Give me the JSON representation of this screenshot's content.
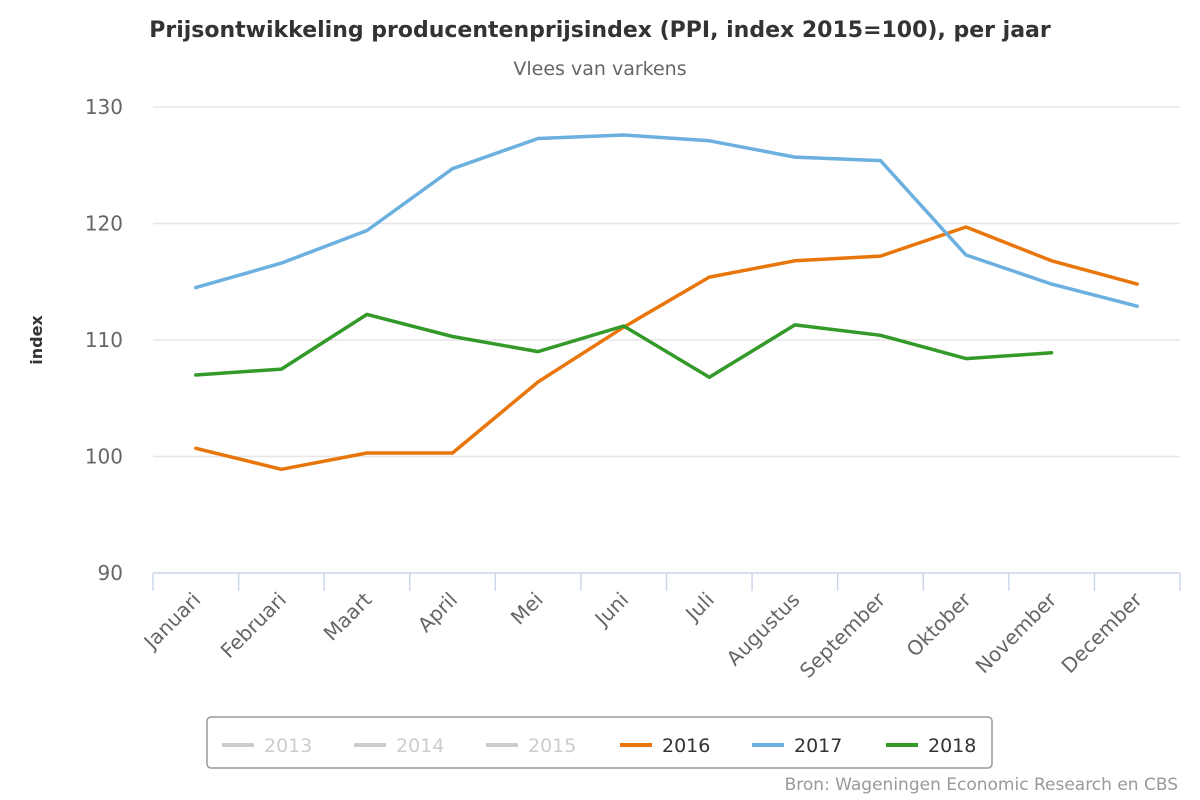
{
  "chart_data": {
    "type": "line",
    "title": "Prijsontwikkeling producentenprijsindex (PPI, index 2015=100), per jaar",
    "subtitle": "Vlees van varkens",
    "xlabel": "",
    "ylabel": "index",
    "ylim": [
      90,
      130
    ],
    "yticks": [
      90,
      100,
      110,
      120,
      130
    ],
    "grid": true,
    "legend_position": "bottom",
    "categories": [
      "Januari",
      "Februari",
      "Maart",
      "April",
      "Mei",
      "Juni",
      "Juli",
      "Augustus",
      "September",
      "Oktober",
      "November",
      "December"
    ],
    "series": [
      {
        "name": "2013",
        "color": "#cccccc",
        "visible": false,
        "values": []
      },
      {
        "name": "2014",
        "color": "#cccccc",
        "visible": false,
        "values": []
      },
      {
        "name": "2015",
        "color": "#cccccc",
        "visible": false,
        "values": []
      },
      {
        "name": "2016",
        "color": "#e8760a",
        "visible": true,
        "values": [
          100.7,
          98.9,
          100.3,
          100.3,
          106.4,
          111.1,
          115.4,
          116.8,
          117.2,
          119.7,
          116.8,
          114.8
        ]
      },
      {
        "name": "2017",
        "color": "#6cb0e0",
        "visible": true,
        "values": [
          114.5,
          116.6,
          119.4,
          124.7,
          127.3,
          127.6,
          127.1,
          125.7,
          125.4,
          117.3,
          114.8,
          112.9
        ]
      },
      {
        "name": "2018",
        "color": "#339a2a",
        "visible": true,
        "values": [
          107.0,
          107.5,
          112.2,
          110.3,
          109.0,
          111.2,
          106.8,
          111.3,
          110.4,
          108.4,
          108.9,
          null
        ]
      }
    ],
    "credits": "Bron: Wageningen Economic Research en CBS"
  },
  "colors": {
    "hidden_text": "#cccccc",
    "visible_text": "#333333",
    "gridline": "#e6e6e6",
    "axis": "#ccd6eb"
  }
}
